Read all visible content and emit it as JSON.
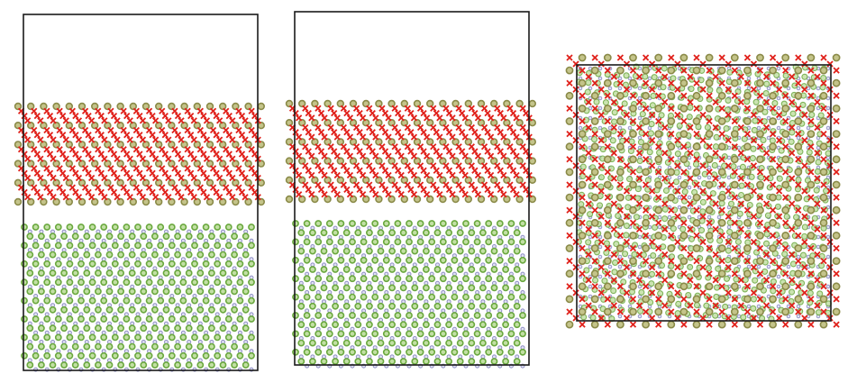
{
  "figure": {
    "panels": [
      {
        "name": "side-view-a",
        "view": "side",
        "layers": [
          "oxide-slab",
          "substrate-slab"
        ]
      },
      {
        "name": "side-view-b",
        "view": "side",
        "layers": [
          "oxide-slab",
          "substrate-slab"
        ]
      },
      {
        "name": "top-view",
        "view": "top",
        "layers": [
          "superposed-interface"
        ]
      }
    ],
    "atom_species": [
      {
        "name": "oxide-cation",
        "color": "#8a8a48",
        "fill": "#c4c48a"
      },
      {
        "name": "oxygen",
        "color": "#e0201a"
      },
      {
        "name": "substrate-cation",
        "color": "#6aa83e",
        "fill": "#c2e0a4"
      },
      {
        "name": "substrate-minor",
        "color": "#8f8fc4",
        "fill": "#e2e2f4"
      }
    ],
    "frame_color": "#1a1a1a"
  }
}
